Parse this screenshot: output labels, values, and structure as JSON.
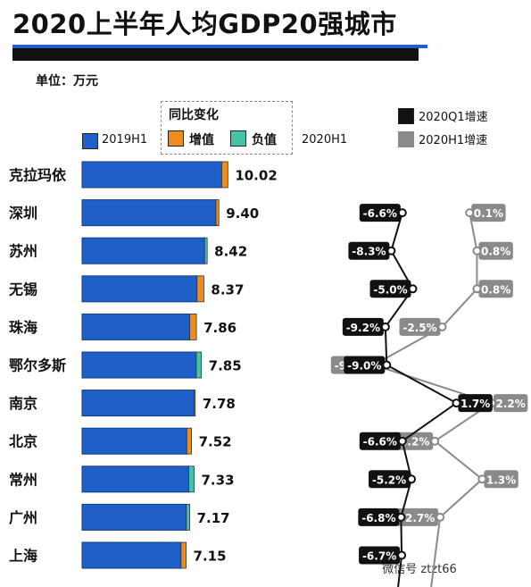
{
  "title": "2020上半年人均GDP20强城市",
  "unit": "单位：万元",
  "legend": {
    "h1_2019": "2019H1",
    "change_group": "同比变化",
    "increase": "增值",
    "decrease": "负值",
    "h1_2020": "2020H1",
    "q1_growth": "2020Q1增速",
    "h1_growth": "2020H1增速"
  },
  "watermark": "微信号 ztzt66",
  "colors": {
    "base_2019": "#1e5fc8",
    "increase": "#f08c1a",
    "decrease": "#45c3a4",
    "q1_line": "#111111",
    "h1_line": "#8a8a8a"
  },
  "chart_data": {
    "type": "bar",
    "series": [
      {
        "name": "2019H1",
        "values": [
          9.6,
          9.2,
          8.6,
          7.9,
          7.4,
          8.2,
          7.7,
          7.2,
          7.7,
          7.4,
          6.8
        ]
      },
      {
        "name": "2020H1",
        "values": [
          10.02,
          9.4,
          8.42,
          8.37,
          7.86,
          7.85,
          7.78,
          7.52,
          7.33,
          7.17,
          7.15
        ]
      },
      {
        "name": "2020Q1增速",
        "values": [
          null,
          -6.6,
          -8.3,
          -5.0,
          -9.2,
          -9.0,
          1.7,
          -6.6,
          -5.2,
          -6.8,
          -6.7
        ]
      },
      {
        "name": "2020H1增速",
        "values": [
          null,
          0.1,
          0.8,
          0.8,
          -2.5,
          -9.0,
          2.2,
          -3.2,
          1.3,
          -2.7,
          null
        ]
      }
    ],
    "categories": [
      "克拉玛依",
      "深圳",
      "苏州",
      "无锡",
      "珠海",
      "鄂尔多斯",
      "南京",
      "北京",
      "常州",
      "广州",
      "上海"
    ],
    "value_labels": [
      "10.02",
      "9.40",
      "8.42",
      "8.37",
      "7.86",
      "7.85",
      "7.78",
      "7.52",
      "7.33",
      "7.17",
      "7.15"
    ],
    "q1_labels": [
      null,
      "-6.6%",
      "-8.3%",
      "-5.0%",
      "-9.2%",
      "-9.0%",
      "1.7%",
      "-6.6%",
      "-5.2%",
      "-6.8%",
      "-6.7%"
    ],
    "h1_labels": [
      null,
      "0.1%",
      "0.8%",
      "0.8%",
      "-2.5%",
      "-9.0%",
      "2.2%",
      "-3.2%",
      "1.3%",
      "-2.7%",
      null
    ]
  }
}
